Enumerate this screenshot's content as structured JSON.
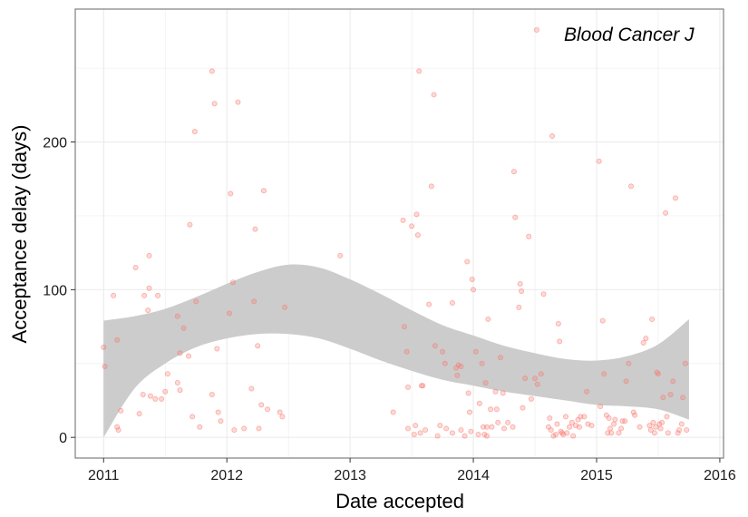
{
  "chart_data": {
    "type": "scatter",
    "xlabel": "Date accepted",
    "ylabel": "Acceptance delay (days)",
    "x_unit": "year (decimal)",
    "xlim": [
      2010.77,
      2016.03
    ],
    "ylim": [
      -14,
      290
    ],
    "x_ticks": [
      2011,
      2012,
      2013,
      2014,
      2015,
      2016
    ],
    "y_ticks": [
      0,
      100,
      200
    ],
    "grid": true,
    "legend_position": "top-right",
    "colors": {
      "points": "#f8766d",
      "ribbon": "#cccccc",
      "grid": "#ebebeb",
      "border": "#7f7f7f"
    },
    "series": [
      {
        "name": "Blood Cancer J",
        "points": [
          [
            2011.0,
            61
          ],
          [
            2011.01,
            48
          ],
          [
            2011.08,
            96
          ],
          [
            2011.11,
            66
          ],
          [
            2011.11,
            7
          ],
          [
            2011.12,
            5
          ],
          [
            2011.14,
            18
          ],
          [
            2011.26,
            115
          ],
          [
            2011.29,
            16
          ],
          [
            2011.32,
            29
          ],
          [
            2011.33,
            96
          ],
          [
            2011.36,
            86
          ],
          [
            2011.37,
            101
          ],
          [
            2011.37,
            123
          ],
          [
            2011.38,
            28
          ],
          [
            2011.42,
            26
          ],
          [
            2011.44,
            96
          ],
          [
            2011.47,
            26
          ],
          [
            2011.5,
            31
          ],
          [
            2011.52,
            43
          ],
          [
            2011.6,
            37
          ],
          [
            2011.6,
            82
          ],
          [
            2011.62,
            57
          ],
          [
            2011.62,
            32
          ],
          [
            2011.65,
            74
          ],
          [
            2011.69,
            55
          ],
          [
            2011.7,
            144
          ],
          [
            2011.72,
            14
          ],
          [
            2011.74,
            207
          ],
          [
            2011.75,
            92
          ],
          [
            2011.78,
            7
          ],
          [
            2011.88,
            248
          ],
          [
            2011.88,
            29
          ],
          [
            2011.9,
            226
          ],
          [
            2011.92,
            60
          ],
          [
            2011.93,
            17
          ],
          [
            2011.95,
            11
          ],
          [
            2012.02,
            84
          ],
          [
            2012.03,
            165
          ],
          [
            2012.05,
            105
          ],
          [
            2012.06,
            5
          ],
          [
            2012.09,
            227
          ],
          [
            2012.14,
            6
          ],
          [
            2012.2,
            33
          ],
          [
            2012.22,
            92
          ],
          [
            2012.23,
            141
          ],
          [
            2012.25,
            62
          ],
          [
            2012.26,
            6
          ],
          [
            2012.28,
            22
          ],
          [
            2012.3,
            167
          ],
          [
            2012.33,
            19
          ],
          [
            2012.43,
            17
          ],
          [
            2012.45,
            14
          ],
          [
            2012.47,
            88
          ],
          [
            2012.92,
            123
          ],
          [
            2013.35,
            17
          ],
          [
            2013.43,
            147
          ],
          [
            2013.44,
            75
          ],
          [
            2013.46,
            58
          ],
          [
            2013.47,
            6
          ],
          [
            2013.47,
            34
          ],
          [
            2013.5,
            143
          ],
          [
            2013.52,
            2
          ],
          [
            2013.53,
            8
          ],
          [
            2013.54,
            151
          ],
          [
            2013.55,
            137
          ],
          [
            2013.56,
            248
          ],
          [
            2013.57,
            3
          ],
          [
            2013.58,
            35
          ],
          [
            2013.59,
            35
          ],
          [
            2013.61,
            5
          ],
          [
            2013.64,
            90
          ],
          [
            2013.66,
            170
          ],
          [
            2013.68,
            232
          ],
          [
            2013.69,
            62
          ],
          [
            2013.71,
            1
          ],
          [
            2013.73,
            8
          ],
          [
            2013.75,
            58
          ],
          [
            2013.77,
            50
          ],
          [
            2013.78,
            6
          ],
          [
            2013.83,
            91
          ],
          [
            2013.83,
            3
          ],
          [
            2013.86,
            47
          ],
          [
            2013.87,
            42
          ],
          [
            2013.88,
            49
          ],
          [
            2013.9,
            48
          ],
          [
            2013.9,
            5
          ],
          [
            2013.93,
            1
          ],
          [
            2013.95,
            119
          ],
          [
            2013.96,
            30
          ],
          [
            2013.97,
            17
          ],
          [
            2013.98,
            4
          ],
          [
            2013.99,
            107
          ],
          [
            2014.0,
            100
          ],
          [
            2014.02,
            58
          ],
          [
            2014.04,
            2
          ],
          [
            2014.05,
            23
          ],
          [
            2014.07,
            50
          ],
          [
            2014.08,
            7
          ],
          [
            2014.09,
            2
          ],
          [
            2014.1,
            37
          ],
          [
            2014.11,
            7
          ],
          [
            2014.11,
            1
          ],
          [
            2014.12,
            80
          ],
          [
            2014.14,
            19
          ],
          [
            2014.15,
            7
          ],
          [
            2014.18,
            31
          ],
          [
            2014.19,
            19
          ],
          [
            2014.2,
            10
          ],
          [
            2014.22,
            54
          ],
          [
            2014.24,
            30
          ],
          [
            2014.25,
            6
          ],
          [
            2014.28,
            10
          ],
          [
            2014.32,
            7
          ],
          [
            2014.33,
            180
          ],
          [
            2014.34,
            149
          ],
          [
            2014.37,
            88
          ],
          [
            2014.38,
            104
          ],
          [
            2014.39,
            99
          ],
          [
            2014.4,
            20
          ],
          [
            2014.42,
            40
          ],
          [
            2014.45,
            136
          ],
          [
            2014.47,
            26
          ],
          [
            2014.5,
            40
          ],
          [
            2014.52,
            36
          ],
          [
            2014.55,
            43
          ],
          [
            2014.57,
            97
          ],
          [
            2014.61,
            7
          ],
          [
            2014.62,
            13
          ],
          [
            2014.63,
            5
          ],
          [
            2014.64,
            204
          ],
          [
            2014.65,
            1
          ],
          [
            2014.67,
            2
          ],
          [
            2014.68,
            9
          ],
          [
            2014.69,
            77
          ],
          [
            2014.7,
            65
          ],
          [
            2014.71,
            4
          ],
          [
            2014.72,
            3
          ],
          [
            2014.73,
            2
          ],
          [
            2014.75,
            14
          ],
          [
            2014.76,
            3
          ],
          [
            2014.78,
            7
          ],
          [
            2014.8,
            10
          ],
          [
            2014.81,
            1
          ],
          [
            2014.83,
            8
          ],
          [
            2014.85,
            12
          ],
          [
            2014.86,
            7
          ],
          [
            2014.87,
            14
          ],
          [
            2014.9,
            14
          ],
          [
            2014.92,
            31
          ],
          [
            2014.93,
            9
          ],
          [
            2014.96,
            8
          ],
          [
            2015.02,
            187
          ],
          [
            2015.03,
            21
          ],
          [
            2015.05,
            79
          ],
          [
            2015.06,
            43
          ],
          [
            2015.08,
            15
          ],
          [
            2015.09,
            3
          ],
          [
            2015.1,
            13
          ],
          [
            2015.11,
            6
          ],
          [
            2015.12,
            3
          ],
          [
            2015.14,
            9
          ],
          [
            2015.15,
            12
          ],
          [
            2015.18,
            3
          ],
          [
            2015.2,
            6
          ],
          [
            2015.21,
            11
          ],
          [
            2015.23,
            11
          ],
          [
            2015.24,
            38
          ],
          [
            2015.26,
            50
          ],
          [
            2015.28,
            170
          ],
          [
            2015.3,
            17
          ],
          [
            2015.31,
            15
          ],
          [
            2015.35,
            7
          ],
          [
            2015.38,
            64
          ],
          [
            2015.4,
            67
          ],
          [
            2015.43,
            8
          ],
          [
            2015.44,
            5
          ],
          [
            2015.45,
            80
          ],
          [
            2015.46,
            10
          ],
          [
            2015.47,
            3
          ],
          [
            2015.48,
            7
          ],
          [
            2015.49,
            44
          ],
          [
            2015.5,
            43
          ],
          [
            2015.51,
            9
          ],
          [
            2015.52,
            6
          ],
          [
            2015.53,
            10
          ],
          [
            2015.54,
            27
          ],
          [
            2015.56,
            152
          ],
          [
            2015.57,
            14
          ],
          [
            2015.58,
            3
          ],
          [
            2015.6,
            29
          ],
          [
            2015.62,
            38
          ],
          [
            2015.64,
            162
          ],
          [
            2015.66,
            3
          ],
          [
            2015.67,
            5
          ],
          [
            2015.69,
            9
          ],
          [
            2015.7,
            27
          ],
          [
            2015.72,
            50
          ],
          [
            2015.73,
            5
          ]
        ]
      }
    ],
    "smooth_band": {
      "x": [
        2011.0,
        2011.25,
        2011.5,
        2011.75,
        2012.0,
        2012.25,
        2012.5,
        2012.75,
        2013.0,
        2013.25,
        2013.5,
        2013.75,
        2014.0,
        2014.25,
        2014.5,
        2014.75,
        2015.0,
        2015.25,
        2015.5,
        2015.75
      ],
      "upper": [
        79,
        82,
        87,
        95,
        104,
        112,
        117,
        115,
        107,
        97,
        86,
        76,
        69,
        62,
        57,
        53,
        52,
        55,
        63,
        80
      ],
      "lower": [
        0,
        33,
        50,
        61,
        67,
        70,
        70,
        67,
        60,
        52,
        45,
        39,
        35,
        31,
        28,
        25,
        22,
        21,
        19,
        12
      ]
    }
  }
}
